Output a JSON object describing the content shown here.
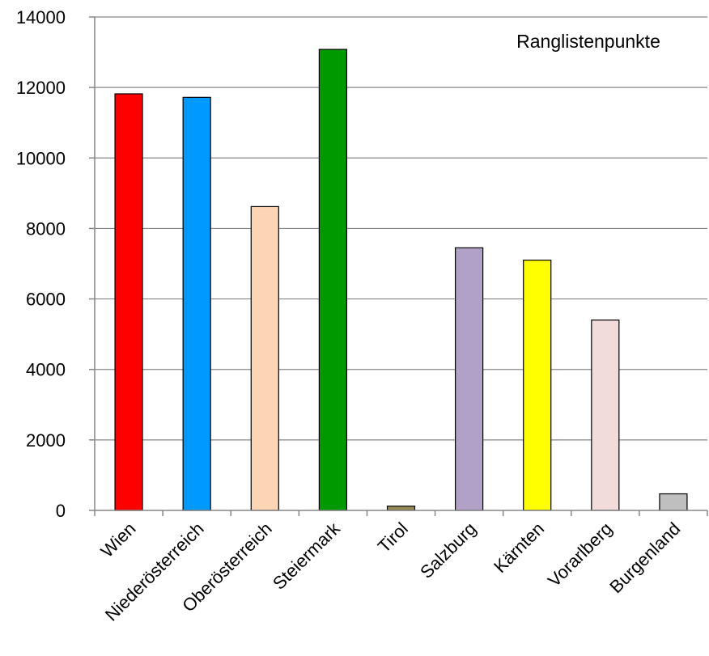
{
  "chart_data": {
    "type": "bar",
    "title": "",
    "xlabel": "",
    "ylabel": "",
    "legend_label": "Ranglistenpunkte",
    "legend_position": "top-right",
    "grid": true,
    "ylim": [
      0,
      14000
    ],
    "yticks": [
      0,
      2000,
      4000,
      6000,
      8000,
      10000,
      12000,
      14000
    ],
    "categories": [
      "Wien",
      "Niederösterreich",
      "Oberösterreich",
      "Steiermark",
      "Tirol",
      "Salzburg",
      "Kärnten",
      "Vorarlberg",
      "Burgenland"
    ],
    "values": [
      11820,
      11720,
      8620,
      13080,
      120,
      7450,
      7100,
      5400,
      470
    ],
    "colors": [
      "#ff0000",
      "#0099ff",
      "#fcd5b5",
      "#009900",
      "#948a54",
      "#b2a1c7",
      "#ffff00",
      "#f2dcdb",
      "#bfbfbf"
    ]
  }
}
